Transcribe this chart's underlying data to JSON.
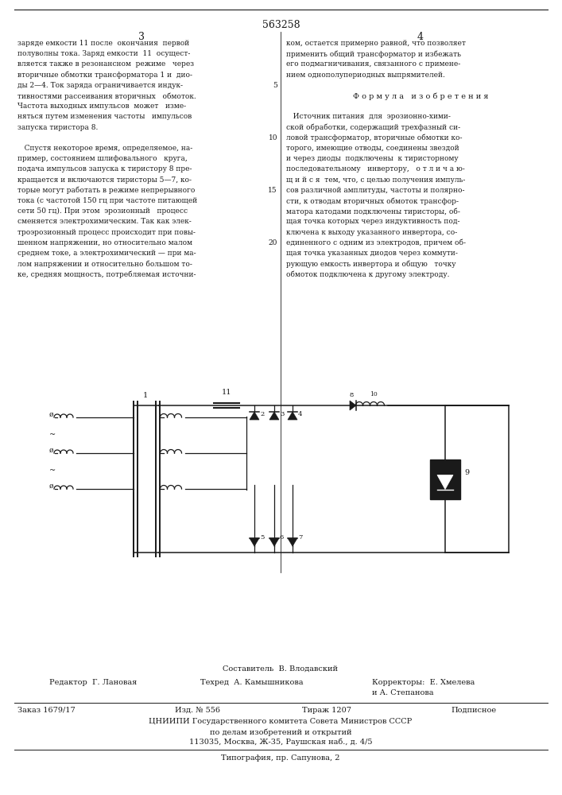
{
  "patent_number": "563258",
  "background_color": "#ffffff",
  "text_color": "#1a1a1a",
  "col1_text": [
    "заряде емкости 11 после  окончания  первой",
    "полуволны тока. Заряд емкости  11  осущест-",
    "вляется также в резонансном  режиме   через",
    "вторичные обмотки трансформатора 1 и  дио-",
    "ды 2—4. Ток заряда ограничивается индук-",
    "тивностями рассеивания вторичных   обмоток.",
    "Частота выходных импульсов  может   изме-",
    "няться путем изменения частоты   импульсов",
    "запуска тиристора 8.",
    " ",
    "   Спустя некоторое время, определяемое, на-",
    "пример, состоянием шлифовального   круга,",
    "подача импульсов запуска к тиристору 8 пре-",
    "кращается и включаются тиристоры 5—7, ко-",
    "торые могут работать в режиме непрерывного",
    "тока (с частотой 150 гц при частоте питающей",
    "сети 50 гц). При этом  эрозионный   процесс",
    "сменяется электрохимическим. Так как элек-",
    "троэрозионный процесс происходит при повы-",
    "шенном напряжении, но относительно малом",
    "среднем токе, а электрохимический — при ма-",
    "лом напряжении и относительно большом то-",
    "ке, средняя мощность, потребляемая источни-"
  ],
  "col2_text": [
    "ком, остается примерно равной, что позволяет",
    "применить общий трансформатор и избежать",
    "его подмагничивания, связанного с примене-",
    "нием однополупериодных выпрямителей.",
    " ",
    "Ф о р м у л а   и з о б р е т е н и я",
    " ",
    "   Источник питания  для  эрозионно-хими-",
    "ской обработки, содержащий трехфазный си-",
    "ловой трансформатор, вторичные обмотки ко-",
    "торого, имеющие отводы, соединены звездой",
    "и через диоды  подключены  к тиристорному",
    "последовательному   инвертору,   о т л и ч а ю-",
    "щ и й с я  тем, что, с целью получения импуль-",
    "сов различной амплитуды, частоты и полярно-",
    "сти, к отводам вторичных обмоток трансфор-",
    "матора катодами подключены тиристоры, об-",
    "щая точка которых через индуктивность под-",
    "ключена к выходу указанного инвертора, со-",
    "единенного с одним из электродов, причем об-",
    "щая точка указанных диодов через коммути-",
    "рующую емкость инвертора и общую   точку",
    "обмоток подключена к другому электроду."
  ],
  "line_numbers": [
    5,
    10,
    15,
    20
  ],
  "footer_compositor": "Составитель  В. Влодавский",
  "footer_editor": "Редактор  Г. Лановая",
  "footer_techred": "Техред  А. Камышникова",
  "footer_correctors": "Корректоры:  Е. Хмелева",
  "footer_correctors2": "и А. Степанова",
  "footer_order": "Заказ 1679/17",
  "footer_izd": "Изд. № 556",
  "footer_tirazh": "Тираж 1207",
  "footer_podpisnoe": "Подписное",
  "footer_org": "ЦНИИПИ Государственного комитета Совета Министров СССР",
  "footer_org2": "по делам изобретений и открытий",
  "footer_address": "113035, Москва, Ж-35, Раушская наб., д. 4/5",
  "footer_print": "Типография, пр. Сапунова, 2"
}
